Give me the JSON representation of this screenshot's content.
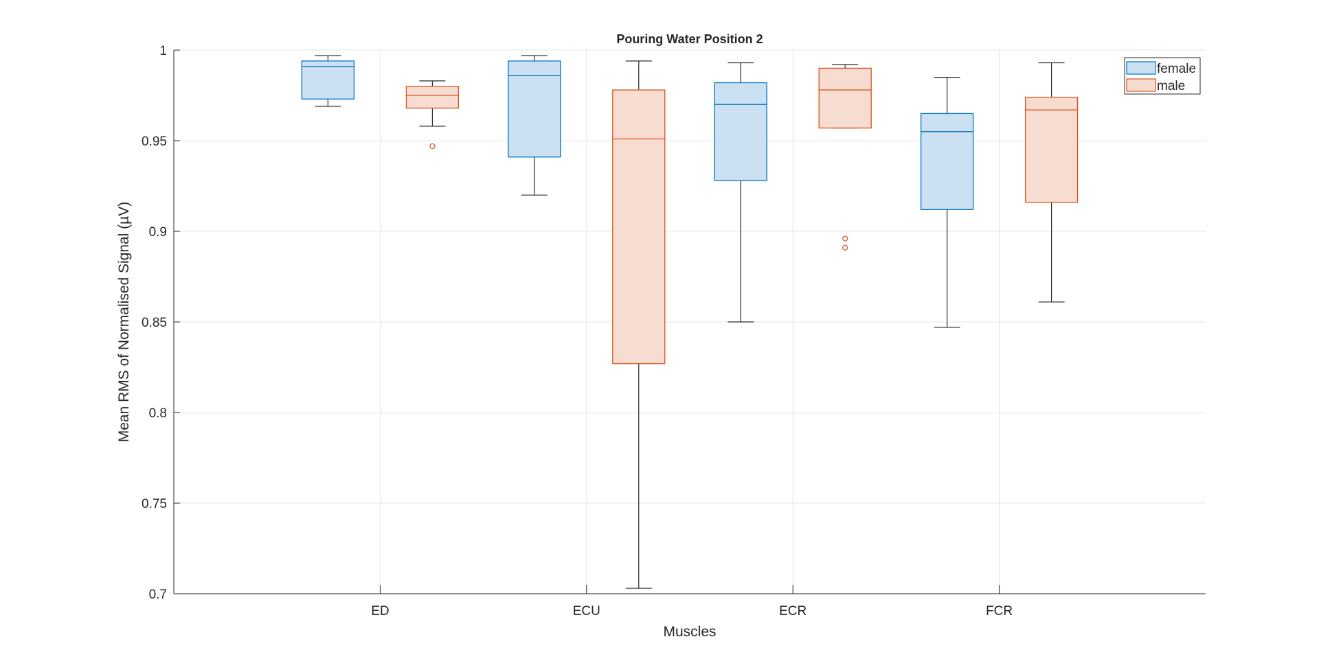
{
  "chart_data": {
    "type": "box",
    "title": "Pouring Water Position 2",
    "xlabel": "Muscles",
    "ylabel": "Mean RMS of Normalised Signal (µV)",
    "ylim": [
      0.7,
      1.0
    ],
    "yticks": [
      "0.7",
      "0.75",
      "0.8",
      "0.85",
      "0.9",
      "0.95",
      "1"
    ],
    "categories": [
      "ED",
      "ECU",
      "ECR",
      "FCR"
    ],
    "grid": true,
    "legend_position": "top-right",
    "series": [
      {
        "name": "female",
        "color": "#0072BD",
        "fill": "#CBE1F1",
        "boxes": [
          {
            "whisker_low": 0.969,
            "q1": 0.973,
            "median": 0.991,
            "q3": 0.994,
            "whisker_high": 0.997,
            "outliers": []
          },
          {
            "whisker_low": 0.92,
            "q1": 0.941,
            "median": 0.986,
            "q3": 0.994,
            "whisker_high": 0.997,
            "outliers": []
          },
          {
            "whisker_low": 0.85,
            "q1": 0.928,
            "median": 0.97,
            "q3": 0.982,
            "whisker_high": 0.993,
            "outliers": []
          },
          {
            "whisker_low": 0.847,
            "q1": 0.912,
            "median": 0.955,
            "q3": 0.965,
            "whisker_high": 0.985,
            "outliers": []
          }
        ]
      },
      {
        "name": "male",
        "color": "#D95319",
        "fill": "#F7DCD1",
        "boxes": [
          {
            "whisker_low": 0.958,
            "q1": 0.968,
            "median": 0.975,
            "q3": 0.98,
            "whisker_high": 0.983,
            "outliers": [
              0.947
            ]
          },
          {
            "whisker_low": 0.703,
            "q1": 0.827,
            "median": 0.951,
            "q3": 0.978,
            "whisker_high": 0.994,
            "outliers": []
          },
          {
            "whisker_low": 0.957,
            "q1": 0.957,
            "median": 0.978,
            "q3": 0.99,
            "whisker_high": 0.992,
            "outliers": [
              0.896,
              0.891
            ]
          },
          {
            "whisker_low": 0.861,
            "q1": 0.916,
            "median": 0.967,
            "q3": 0.974,
            "whisker_high": 0.993,
            "outliers": []
          }
        ]
      }
    ]
  }
}
